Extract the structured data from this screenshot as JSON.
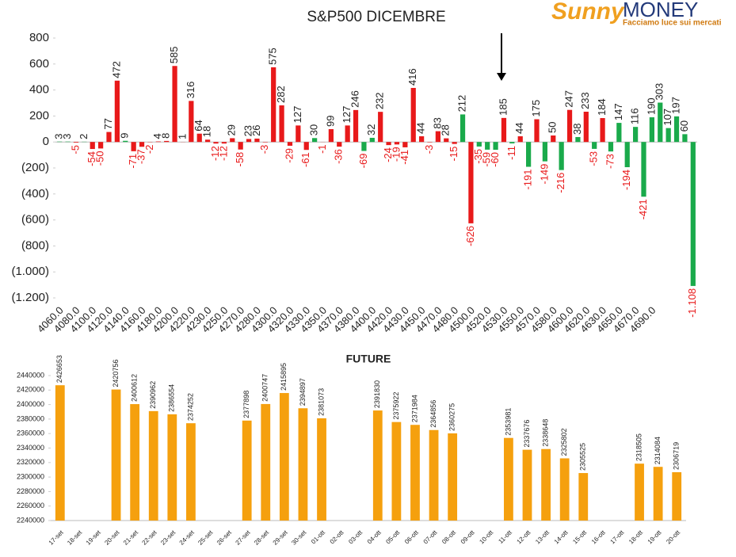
{
  "logo": {
    "name_a": "Sunny",
    "name_b": "MONEY",
    "tagline": "Facciamo luce sui mercati"
  },
  "chart_data": [
    {
      "type": "bar",
      "title": "S&P500 DICEMBRE",
      "categories": [
        "4060.0",
        null,
        "4080.0",
        null,
        "4100.0",
        null,
        "4120.0",
        null,
        "4140.0",
        null,
        "4160.0",
        null,
        "4180.0",
        null,
        "4200.0",
        null,
        "4220.0",
        null,
        "4230.0",
        null,
        "4250.0",
        null,
        "4270.0",
        null,
        "4280.0",
        null,
        "4300.0",
        null,
        "4320.0",
        null,
        "4330.0",
        null,
        "4350.0",
        null,
        "4370.0",
        null,
        "4380.0",
        null,
        "4400.0",
        null,
        "4420.0",
        null,
        "4430.0",
        null,
        "4450.0",
        null,
        "4470.0",
        null,
        "4480.0",
        null,
        "4500.0",
        null,
        "4520.0",
        null,
        "4530.0",
        null,
        "4550.0",
        null,
        "4570.0",
        null,
        "4580.0",
        null,
        "4600.0",
        null,
        "4620.0",
        null,
        "4630.0",
        null,
        "4650.0",
        null,
        "4670.0",
        null,
        "4690.0",
        null,
        null,
        null,
        null,
        null
      ],
      "values": [
        3,
        3,
        -5,
        2,
        -54,
        -50,
        77,
        472,
        9,
        -71,
        -37,
        -2,
        4,
        8,
        585,
        1,
        316,
        64,
        18,
        -12,
        -12,
        29,
        -58,
        23,
        26,
        -3,
        575,
        282,
        -29,
        127,
        -61,
        30,
        -1,
        99,
        -36,
        127,
        246,
        -69,
        32,
        232,
        -24,
        -19,
        -41,
        416,
        44,
        -3,
        83,
        28,
        -15,
        212,
        -626,
        -35,
        -59,
        -60,
        185,
        -11,
        44,
        -191,
        175,
        -149,
        50,
        -216,
        247,
        38,
        233,
        -53,
        184,
        -73,
        147,
        -194,
        116,
        -421,
        190,
        303,
        107,
        197,
        60,
        -1108
      ],
      "value_labels": [
        "3",
        "3",
        "-5",
        "2",
        "-54",
        "-50",
        "77",
        "472",
        "9",
        "-71",
        "-37",
        "-2",
        "4",
        "8",
        "585",
        "1",
        "316",
        "64",
        "18",
        "-12",
        "-12",
        "29",
        "-58",
        "23",
        "26",
        "-3",
        "575",
        "282",
        "-29",
        "127",
        "-61",
        "30",
        "-1",
        "99",
        "-36",
        "127",
        "246",
        "-69",
        "32",
        "232",
        "-24",
        "-19",
        "-41",
        "416",
        "44",
        "-3",
        "83",
        "28",
        "-15",
        "212",
        "-626",
        "-35",
        "-59",
        "-60",
        "185",
        "-11",
        "44",
        "-191",
        "175",
        "-149",
        "50",
        "-216",
        "247",
        "38",
        "233",
        "-53",
        "184",
        "-73",
        "147",
        "-194",
        "116",
        "-421",
        "190",
        "303",
        "107",
        "197",
        "60",
        "-1.108"
      ],
      "colors": [
        "#1aaa4b",
        "#1aaa4b",
        "#e8191a",
        "#1aaa4b",
        "#e8191a",
        "#e8191a",
        "#e8191a",
        "#e8191a",
        "#1aaa4b",
        "#e8191a",
        "#e8191a",
        "#e8191a",
        "#e8191a",
        "#e8191a",
        "#e8191a",
        "#e8191a",
        "#e8191a",
        "#e8191a",
        "#e8191a",
        "#e8191a",
        "#e8191a",
        "#e8191a",
        "#e8191a",
        "#e8191a",
        "#e8191a",
        "#e8191a",
        "#e8191a",
        "#e8191a",
        "#e8191a",
        "#e8191a",
        "#e8191a",
        "#1aaa4b",
        "#e8191a",
        "#e8191a",
        "#e8191a",
        "#e8191a",
        "#e8191a",
        "#1aaa4b",
        "#1aaa4b",
        "#e8191a",
        "#e8191a",
        "#e8191a",
        "#e8191a",
        "#e8191a",
        "#e8191a",
        "#e8191a",
        "#e8191a",
        "#e8191a",
        "#e8191a",
        "#1aaa4b",
        "#e8191a",
        "#1aaa4b",
        "#1aaa4b",
        "#1aaa4b",
        "#e8191a",
        "#1aaa4b",
        "#e8191a",
        "#1aaa4b",
        "#e8191a",
        "#1aaa4b",
        "#e8191a",
        "#1aaa4b",
        "#e8191a",
        "#1aaa4b",
        "#e8191a",
        "#1aaa4b",
        "#e8191a",
        "#1aaa4b",
        "#1aaa4b",
        "#1aaa4b",
        "#1aaa4b",
        "#1aaa4b",
        "#1aaa4b",
        "#1aaa4b",
        "#1aaa4b",
        "#1aaa4b",
        "#1aaa4b",
        "#1aaa4b"
      ],
      "ylim": [
        -1200,
        800
      ],
      "yticks": [
        800,
        600,
        400,
        200,
        0,
        {
          "value": -200,
          "label": "(200)"
        },
        {
          "value": -400,
          "label": "(400)"
        },
        {
          "value": -600,
          "label": "(600)"
        },
        {
          "value": -800,
          "label": "(800)"
        },
        {
          "value": -1000,
          "label": "(1.000)"
        },
        {
          "value": -1200,
          "label": "(1.200)"
        }
      ]
    },
    {
      "type": "bar",
      "title": "FUTURE",
      "color": "#f5a00e",
      "categories": [
        "17-set",
        "18-set",
        "19-set",
        "20-set",
        "21-set",
        "22-set",
        "23-set",
        "24-set",
        "25-set",
        "26-set",
        "27-set",
        "28-set",
        "29-set",
        "30-set",
        "01-ott",
        "02-ott",
        "03-ott",
        "04-ott",
        "05-ott",
        "06-ott",
        "07-ott",
        "08-ott",
        "09-ott",
        "10-ott",
        "11-ott",
        "12-ott",
        "13-ott",
        "14-ott",
        "15-ott",
        "16-ott",
        "17-ott",
        "18-ott",
        "19-ott",
        "20-ott"
      ],
      "values": [
        2426653,
        null,
        null,
        2420756,
        2400612,
        2390962,
        2386554,
        2374252,
        null,
        null,
        2377898,
        2400747,
        2415895,
        2394897,
        2381073,
        null,
        null,
        2391830,
        2375922,
        2371984,
        2364856,
        2360275,
        null,
        null,
        2353981,
        2337676,
        2338648,
        2325802,
        2305525,
        null,
        null,
        2318505,
        2314084,
        2306719
      ],
      "ylim": [
        2240000,
        2440000
      ],
      "yticks": [
        2240000,
        2260000,
        2280000,
        2300000,
        2320000,
        2340000,
        2360000,
        2380000,
        2400000,
        2420000,
        2440000
      ]
    }
  ]
}
